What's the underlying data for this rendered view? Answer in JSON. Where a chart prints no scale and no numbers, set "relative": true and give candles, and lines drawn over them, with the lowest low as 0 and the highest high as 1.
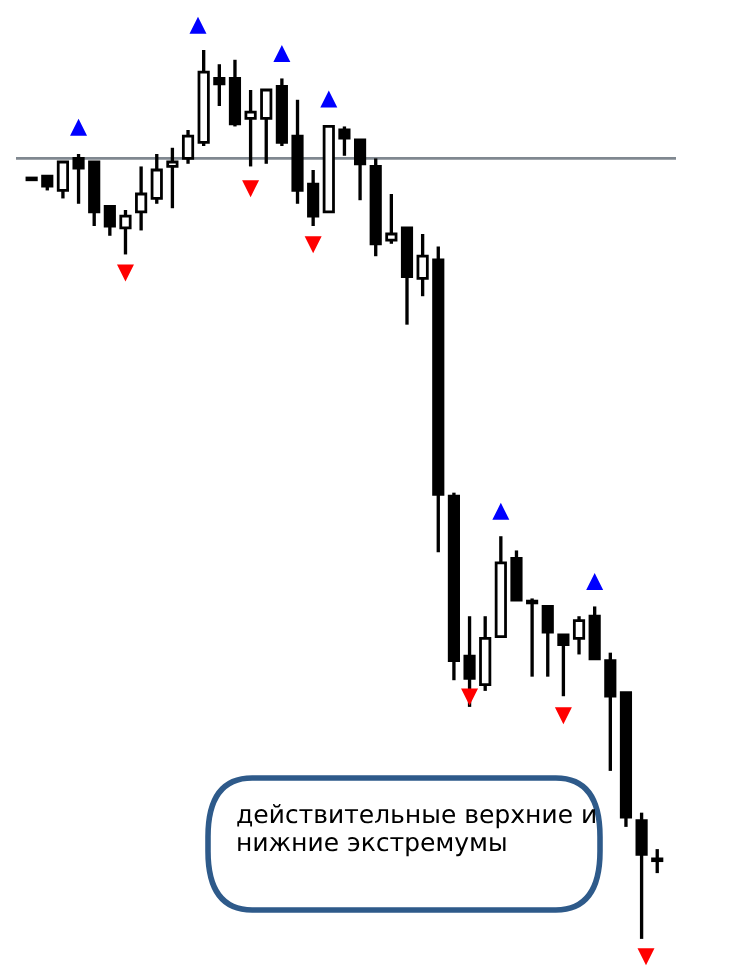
{
  "chart_data": {
    "type": "candlestick",
    "relative": true,
    "categories": [
      null,
      null,
      null,
      null,
      null,
      null,
      null,
      null,
      null,
      null,
      null,
      null,
      null,
      null,
      null,
      null,
      null,
      null,
      null,
      null,
      null,
      null,
      null,
      null,
      null,
      null,
      null,
      null,
      null,
      null,
      null,
      null,
      null,
      null,
      null,
      null,
      null,
      null,
      null,
      null,
      null
    ],
    "ohlc": [
      [
        0.854,
        0.854,
        0.854,
        0.854
      ],
      [
        0.858,
        0.858,
        0.842,
        0.847
      ],
      [
        0.842,
        0.874,
        0.833,
        0.874
      ],
      [
        0.878,
        0.883,
        0.827,
        0.867
      ],
      [
        0.874,
        0.874,
        0.802,
        0.818
      ],
      [
        0.824,
        0.824,
        0.791,
        0.802
      ],
      [
        0.8,
        0.82,
        0.77,
        0.813
      ],
      [
        0.818,
        0.869,
        0.797,
        0.838
      ],
      [
        0.833,
        0.883,
        0.827,
        0.865
      ],
      [
        0.869,
        0.89,
        0.822,
        0.874
      ],
      [
        0.878,
        0.91,
        0.872,
        0.903
      ],
      [
        0.896,
        1.0,
        0.892,
        0.975
      ],
      [
        0.968,
        0.984,
        0.937,
        0.962
      ],
      [
        0.968,
        0.989,
        0.914,
        0.917
      ],
      [
        0.923,
        0.955,
        0.869,
        0.93
      ],
      [
        0.923,
        0.955,
        0.872,
        0.955
      ],
      [
        0.959,
        0.968,
        0.892,
        0.896
      ],
      [
        0.903,
        0.944,
        0.827,
        0.842
      ],
      [
        0.849,
        0.865,
        0.802,
        0.813
      ],
      [
        0.818,
        0.914,
        0.818,
        0.914
      ],
      [
        0.91,
        0.914,
        0.881,
        0.901
      ],
      [
        0.899,
        0.899,
        0.831,
        0.872
      ],
      [
        0.869,
        0.878,
        0.768,
        0.782
      ],
      [
        0.786,
        0.838,
        0.782,
        0.793
      ],
      [
        0.8,
        0.8,
        0.691,
        0.745
      ],
      [
        0.743,
        0.793,
        0.723,
        0.768
      ],
      [
        0.764,
        0.779,
        0.435,
        0.5
      ],
      [
        0.498,
        0.502,
        0.291,
        0.313
      ],
      [
        0.318,
        0.363,
        0.261,
        0.293
      ],
      [
        0.286,
        0.363,
        0.279,
        0.338
      ],
      [
        0.34,
        0.453,
        0.34,
        0.423
      ],
      [
        0.428,
        0.437,
        0.381,
        0.381
      ],
      [
        0.378,
        0.383,
        0.295,
        0.378
      ],
      [
        0.374,
        0.374,
        0.295,
        0.345
      ],
      [
        0.342,
        0.342,
        0.273,
        0.331
      ],
      [
        0.338,
        0.363,
        0.32,
        0.358
      ],
      [
        0.363,
        0.374,
        0.315,
        0.315
      ],
      [
        0.313,
        0.322,
        0.189,
        0.273
      ],
      [
        0.277,
        0.277,
        0.126,
        0.137
      ],
      [
        0.133,
        0.142,
        0.0,
        0.095
      ],
      [
        0.088,
        0.101,
        0.074,
        0.088
      ]
    ],
    "series": [
      {
        "type": "scatter",
        "color": "#0000ff",
        "marker": "triangle",
        "values": [
          null,
          null,
          null,
          0.912,
          null,
          null,
          null,
          null,
          null,
          null,
          null,
          null,
          null,
          null,
          null,
          null,
          0.995,
          null,
          null,
          0.944,
          null,
          null,
          null,
          null,
          null,
          null,
          null,
          null,
          null,
          null,
          0.48,
          null,
          null,
          null,
          null,
          null,
          0.401,
          null,
          null,
          null,
          null
        ]
      },
      {
        "type": "scatter",
        "color": "#ff0000",
        "marker": "triangle",
        "values": [
          null,
          null,
          null,
          null,
          null,
          null,
          0.75,
          null,
          null,
          null,
          null,
          null,
          null,
          null,
          0.845,
          null,
          null,
          null,
          0.782,
          null,
          null,
          null,
          null,
          null,
          null,
          null,
          null,
          null,
          0.273,
          null,
          null,
          null,
          null,
          null,
          0.252,
          null,
          null,
          null,
          null,
          null,
          null
        ]
      }
    ],
    "ref_lines": [
      {
        "axis": "y",
        "value": 0.878,
        "color": "#808890"
      }
    ],
    "annotations": [
      "действительные верхние и нижние экстремумы"
    ],
    "grid": false,
    "legend": false
  }
}
